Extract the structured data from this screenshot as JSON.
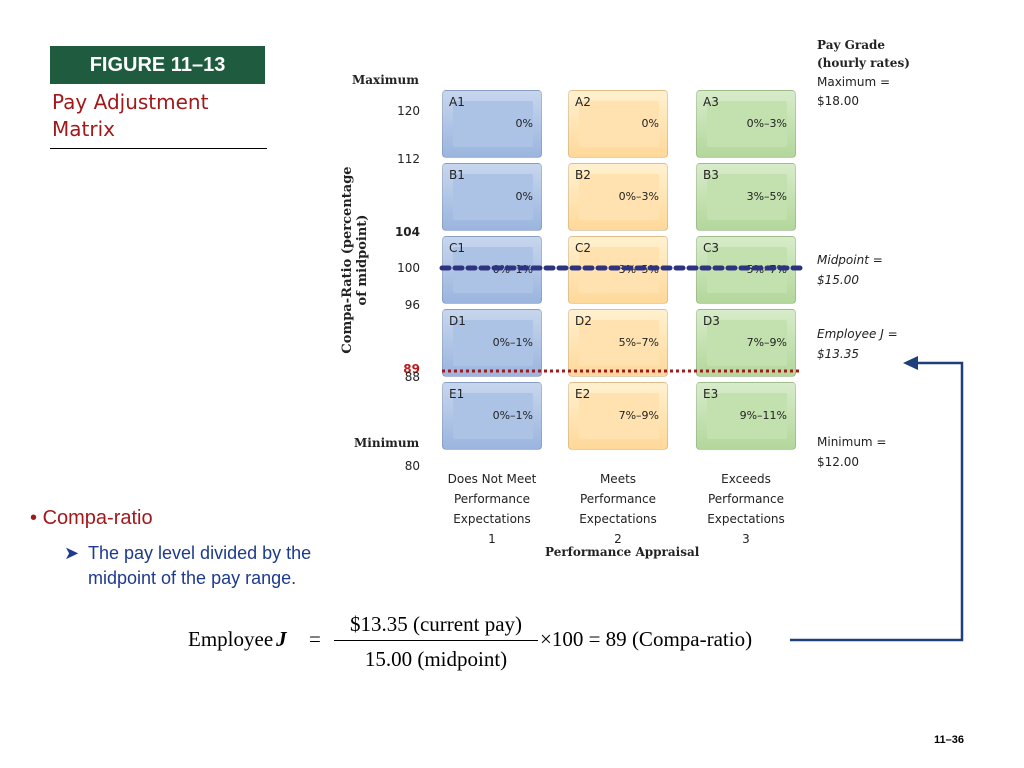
{
  "figure": {
    "label": "FIGURE 11–13",
    "title": "Pay Adjustment Matrix"
  },
  "yaxis": {
    "title": "Compa-Ratio (percentage of midpoint)",
    "maximum_label": "Maximum",
    "minimum_label": "Minimum",
    "ticks": [
      "120",
      "112",
      "104",
      "100",
      "96",
      "88",
      "80"
    ],
    "employee_marker": "89"
  },
  "matrix": {
    "rows": [
      {
        "cells": [
          {
            "code": "A1",
            "value": "0%"
          },
          {
            "code": "A2",
            "value": "0%"
          },
          {
            "code": "A3",
            "value": "0%–3%"
          }
        ]
      },
      {
        "cells": [
          {
            "code": "B1",
            "value": "0%"
          },
          {
            "code": "B2",
            "value": "0%–3%"
          },
          {
            "code": "B3",
            "value": "3%–5%"
          }
        ]
      },
      {
        "cells": [
          {
            "code": "C1",
            "value": "0%–1%"
          },
          {
            "code": "C2",
            "value": "3%–5%"
          },
          {
            "code": "C3",
            "value": "5%–7%"
          }
        ]
      },
      {
        "cells": [
          {
            "code": "D1",
            "value": "0%–1%"
          },
          {
            "code": "D2",
            "value": "5%–7%"
          },
          {
            "code": "D3",
            "value": "7%–9%"
          }
        ]
      },
      {
        "cells": [
          {
            "code": "E1",
            "value": "0%–1%"
          },
          {
            "code": "E2",
            "value": "7%–9%"
          },
          {
            "code": "E3",
            "value": "9%–11%"
          }
        ]
      }
    ],
    "columns": [
      {
        "line1": "Does Not Meet",
        "line2": "Performance",
        "line3": "Expectations",
        "number": "1"
      },
      {
        "line1": "Meets",
        "line2": "Performance",
        "line3": "Expectations",
        "number": "2"
      },
      {
        "line1": "Exceeds",
        "line2": "Performance",
        "line3": "Expectations",
        "number": "3"
      }
    ],
    "xaxis_title": "Performance Appraisal",
    "colors": {
      "blue": "#9bb5df",
      "yellow": "#ffd89a",
      "green": "#b3d79b",
      "midpoint_line": "#2e3380",
      "employee_line": "#a3181b"
    }
  },
  "pay_grade": {
    "heading_line1": "Pay Grade",
    "heading_line2": "(hourly rates)",
    "maximum_label": "Maximum =",
    "maximum_value": "$18.00",
    "midpoint_label": "Midpoint =",
    "midpoint_value": "$15.00",
    "employee_label": "Employee J =",
    "employee_value": "$13.35",
    "minimum_label": "Minimum =",
    "minimum_value": "$12.00"
  },
  "bullets": {
    "main": "Compa-ratio",
    "sub_line1": "The pay level divided by the",
    "sub_line2": "midpoint of the pay range."
  },
  "formula": {
    "lhs": "Employee",
    "lhs_var": "J",
    "equals": "=",
    "numerator": "$13.35 (current pay)",
    "denominator": "15.00 (midpoint)",
    "times": "×100 = 89",
    "result": "(Compa-ratio)"
  },
  "page_number": "11–36"
}
